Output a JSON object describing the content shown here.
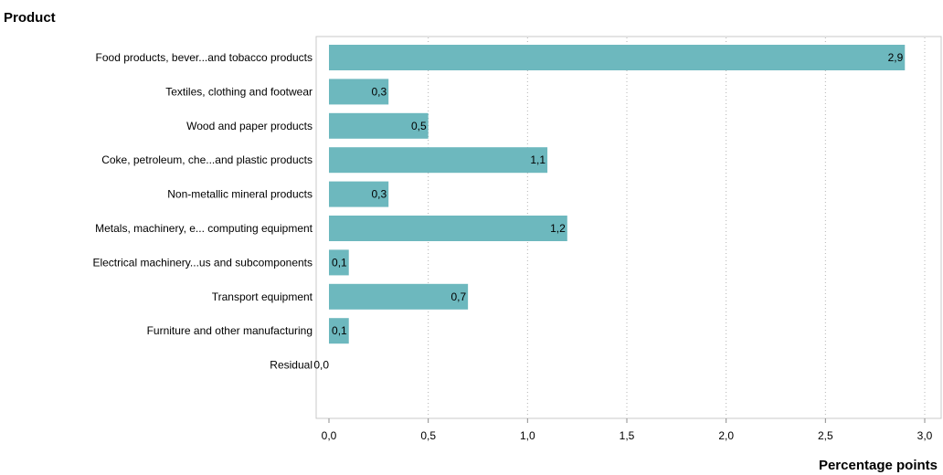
{
  "chart_data": {
    "type": "bar",
    "orientation": "horizontal",
    "title": "Product",
    "xlabel": "Percentage points",
    "ylabel": "",
    "categories": [
      "Food products, bever...and tobacco products",
      "Textiles, clothing and footwear",
      "Wood and paper products",
      "Coke, petroleum, che...and plastic products",
      "Non-metallic mineral products",
      "Metals, machinery, e... computing equipment",
      "Electrical machinery...us and subcomponents",
      "Transport equipment",
      "Furniture and other manufacturing",
      "Residual"
    ],
    "values": [
      2.9,
      0.3,
      0.5,
      1.1,
      0.3,
      1.2,
      0.1,
      0.7,
      0.1,
      0.0
    ],
    "value_labels": [
      "2,9",
      "0,3",
      "0,5",
      "1,1",
      "0,3",
      "1,2",
      "0,1",
      "0,7",
      "0,1",
      "0,0"
    ],
    "xlim": [
      0,
      3.0
    ],
    "xticks": [
      0,
      0.5,
      1.0,
      1.5,
      2.0,
      2.5,
      3.0
    ],
    "xtick_labels": [
      "0,0",
      "0,5",
      "1,0",
      "1,5",
      "2,0",
      "2,5",
      "3,0"
    ],
    "grid": "vertical dotted",
    "bar_color": "#6db8be"
  }
}
